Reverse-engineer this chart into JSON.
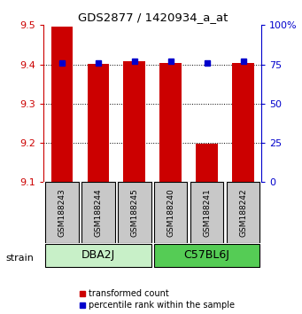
{
  "title": "GDS2877 / 1420934_a_at",
  "samples": [
    "GSM188243",
    "GSM188244",
    "GSM188245",
    "GSM188240",
    "GSM188241",
    "GSM188242"
  ],
  "red_values": [
    9.497,
    9.401,
    9.407,
    9.403,
    9.197,
    9.403
  ],
  "blue_percentiles": [
    76,
    76,
    77,
    77,
    76,
    77
  ],
  "ylim_left": [
    9.1,
    9.5
  ],
  "ylim_right": [
    0,
    100
  ],
  "yticks_left": [
    9.1,
    9.2,
    9.3,
    9.4,
    9.5
  ],
  "yticks_right": [
    0,
    25,
    50,
    75,
    100
  ],
  "ytick_right_labels": [
    "0",
    "25",
    "50",
    "75",
    "100%"
  ],
  "groups": [
    {
      "label": "DBA2J",
      "indices": [
        0,
        1,
        2
      ],
      "color": "#c8f0c8"
    },
    {
      "label": "C57BL6J",
      "indices": [
        3,
        4,
        5
      ],
      "color": "#55cc55"
    }
  ],
  "bar_color": "#cc0000",
  "dot_color": "#0000cc",
  "bar_bottom": 9.1,
  "bar_width": 0.6,
  "bg_color": "#ffffff",
  "sample_box_color": "#c8c8c8",
  "legend_red_label": "transformed count",
  "legend_blue_label": "percentile rank within the sample",
  "strain_label": "strain"
}
